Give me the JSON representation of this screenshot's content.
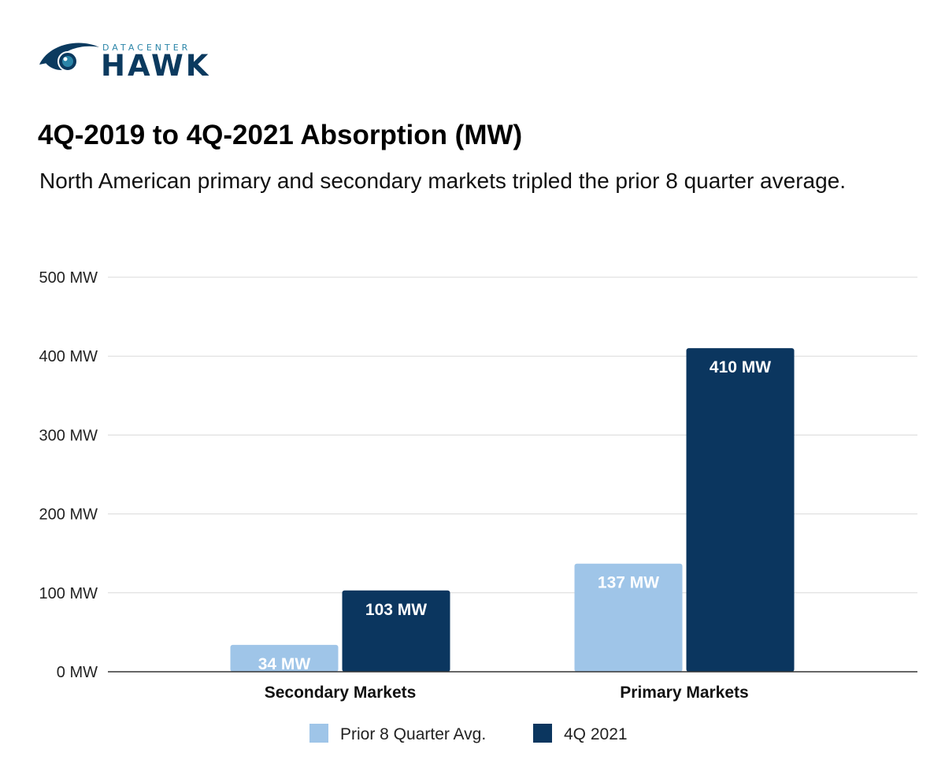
{
  "logo": {
    "small_text": "DATACENTER",
    "big_text": "HAWK"
  },
  "title": "4Q-2019 to 4Q-2021 Absorption (MW)",
  "subtitle": "North American primary and secondary markets tripled the prior 8 quarter average.",
  "colors": {
    "series_light": "#9fc5e8",
    "series_dark": "#0b365f",
    "grid": "#d9d9d9",
    "axis": "#333333"
  },
  "chart_data": {
    "type": "bar",
    "categories": [
      "Secondary Markets",
      "Primary Markets"
    ],
    "series": [
      {
        "name": "Prior 8 Quarter Avg.",
        "values": [
          34,
          137
        ],
        "labels": [
          "34 MW",
          "137 MW"
        ]
      },
      {
        "name": "4Q 2021",
        "values": [
          103,
          410
        ],
        "labels": [
          "103 MW",
          "410 MW"
        ]
      }
    ],
    "ylim": [
      0,
      500
    ],
    "yticks": [
      0,
      100,
      200,
      300,
      400,
      500
    ],
    "ytick_labels": [
      "0 MW",
      "100 MW",
      "200 MW",
      "300 MW",
      "400 MW",
      "500 MW"
    ],
    "grid": true,
    "legend_position": "bottom"
  }
}
